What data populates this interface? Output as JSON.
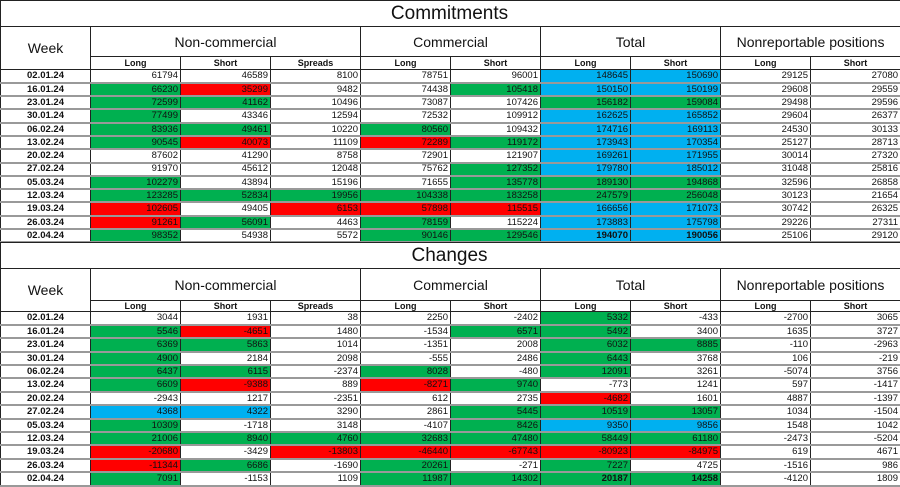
{
  "palette": {
    "g": "#00b050",
    "r": "#ff0000",
    "b": "#00b0f0",
    "w": "#ffffff"
  },
  "headers": {
    "week": "Week",
    "noncommercial": "Non-commercial",
    "commercial": "Commercial",
    "total": "Total",
    "nonreportable": "Nonreportable positions",
    "sub": [
      "Long",
      "Short",
      "Spreads",
      "Long",
      "Short",
      "Long",
      "Short",
      "Long",
      "Short"
    ]
  },
  "commitments": {
    "title": "Commitments",
    "rows": [
      {
        "week": "02.01.24",
        "v": [
          61794,
          46589,
          8100,
          78751,
          96001,
          148645,
          150690,
          29125,
          27080
        ],
        "c": "wwwwwbbww"
      },
      {
        "week": "16.01.24",
        "v": [
          66230,
          35299,
          9482,
          74438,
          105418,
          150150,
          150199,
          29608,
          29559
        ],
        "c": "grwwgbbww"
      },
      {
        "week": "23.01.24",
        "v": [
          72599,
          41162,
          10496,
          73087,
          107426,
          156182,
          159084,
          29498,
          29596
        ],
        "c": "ggwwwggww"
      },
      {
        "week": "30.01.24",
        "v": [
          77499,
          43346,
          12594,
          72532,
          109912,
          162625,
          165852,
          29604,
          26377
        ],
        "c": "gwwwwbbww"
      },
      {
        "week": "06.02.24",
        "v": [
          83936,
          49461,
          10220,
          80560,
          109432,
          174716,
          169113,
          24530,
          30133
        ],
        "c": "ggwgwbbww"
      },
      {
        "week": "13.02.24",
        "v": [
          90545,
          40073,
          11109,
          72289,
          119172,
          173943,
          170354,
          25127,
          28713
        ],
        "c": "grwrgbbww"
      },
      {
        "week": "20.02.24",
        "v": [
          87602,
          41290,
          8758,
          72901,
          121907,
          169261,
          171955,
          30014,
          27320
        ],
        "c": "wwwwwbbww"
      },
      {
        "week": "27.02.24",
        "v": [
          91970,
          45612,
          12048,
          75762,
          127352,
          179780,
          185012,
          31048,
          25816
        ],
        "c": "wwwwgbbww"
      },
      {
        "week": "05.03.24",
        "v": [
          102279,
          43894,
          15196,
          71655,
          135778,
          189130,
          194868,
          32596,
          26858
        ],
        "c": "gwwwgggww"
      },
      {
        "week": "12.03.24",
        "v": [
          123285,
          52834,
          19956,
          104338,
          183258,
          247579,
          256048,
          30123,
          21654
        ],
        "c": "gggggggww"
      },
      {
        "week": "19.03.24",
        "v": [
          102605,
          49405,
          6153,
          57898,
          115515,
          166656,
          171073,
          30742,
          26325
        ],
        "c": "rwrrrbbww"
      },
      {
        "week": "26.03.24",
        "v": [
          91261,
          56091,
          4463,
          78159,
          115224,
          173883,
          175798,
          29226,
          27311
        ],
        "c": "rgwgwbbww"
      },
      {
        "week": "02.04.24",
        "v": [
          98352,
          54938,
          5572,
          90146,
          129546,
          194070,
          190056,
          25106,
          29120
        ],
        "c": "gwwggbbww",
        "bold": true
      }
    ]
  },
  "changes": {
    "title": "Changes",
    "rows": [
      {
        "week": "02.01.24",
        "v": [
          3044,
          1931,
          38,
          2250,
          -2402,
          5332,
          -433,
          -2700,
          3065
        ],
        "c": "wwwwwgwww"
      },
      {
        "week": "16.01.24",
        "v": [
          5546,
          -4651,
          1480,
          -1534,
          6571,
          5492,
          3400,
          1635,
          3727
        ],
        "c": "grwwggwww"
      },
      {
        "week": "23.01.24",
        "v": [
          6369,
          5863,
          1014,
          -1351,
          2008,
          6032,
          8885,
          -110,
          -2963
        ],
        "c": "ggwwwggww"
      },
      {
        "week": "30.01.24",
        "v": [
          4900,
          2184,
          2098,
          -555,
          2486,
          6443,
          3768,
          106,
          -219
        ],
        "c": "gwwwwgwww"
      },
      {
        "week": "06.02.24",
        "v": [
          6437,
          6115,
          -2374,
          8028,
          -480,
          12091,
          3261,
          -5074,
          3756
        ],
        "c": "ggwgwgwww"
      },
      {
        "week": "13.02.24",
        "v": [
          6609,
          -9388,
          889,
          -8271,
          9740,
          -773,
          1241,
          597,
          -1417
        ],
        "c": "grwrgwwww"
      },
      {
        "week": "20.02.24",
        "v": [
          -2943,
          1217,
          -2351,
          612,
          2735,
          -4682,
          1601,
          4887,
          -1397
        ],
        "c": "wwwwwrwww"
      },
      {
        "week": "27.02.24",
        "v": [
          4368,
          4322,
          3290,
          2861,
          5445,
          10519,
          13057,
          1034,
          -1504
        ],
        "c": "bbwwgggww"
      },
      {
        "week": "05.03.24",
        "v": [
          10309,
          -1718,
          3148,
          -4107,
          8426,
          9350,
          9856,
          1548,
          1042
        ],
        "c": "gwwwgbbww"
      },
      {
        "week": "12.03.24",
        "v": [
          21006,
          8940,
          4760,
          32683,
          47480,
          58449,
          61180,
          -2473,
          -5204
        ],
        "c": "gggggggww"
      },
      {
        "week": "19.03.24",
        "v": [
          -20680,
          -3429,
          -13803,
          -46440,
          -67743,
          -80923,
          -84975,
          619,
          4671
        ],
        "c": "rwrrrrrww"
      },
      {
        "week": "26.03.24",
        "v": [
          -11344,
          6686,
          -1690,
          20261,
          -271,
          7227,
          4725,
          -1516,
          986
        ],
        "c": "rgwgwgwww"
      },
      {
        "week": "02.04.24",
        "v": [
          7091,
          -1153,
          1109,
          11987,
          14302,
          20187,
          14258,
          -4120,
          1809
        ],
        "c": "gwwggggww",
        "bold": true
      }
    ]
  }
}
